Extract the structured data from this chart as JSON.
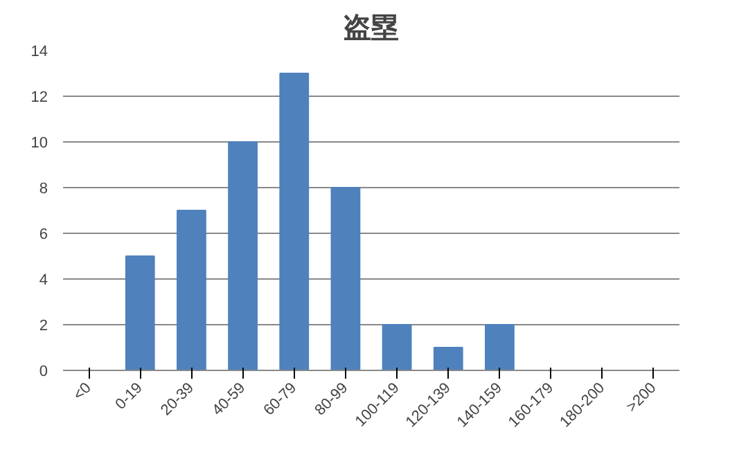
{
  "chart_data": {
    "type": "bar",
    "title": "盗塁",
    "categories": [
      "<0",
      "0-19",
      "20-39",
      "40-59",
      "60-79",
      "80-99",
      "100-119",
      "120-139",
      "140-159",
      "160-179",
      "180-200",
      ">200"
    ],
    "values": [
      0,
      5,
      7,
      10,
      13,
      8,
      2,
      1,
      2,
      0,
      0,
      0
    ],
    "color": "#4f81bd",
    "ylim": [
      0,
      14
    ],
    "yticks": [
      0,
      2,
      4,
      6,
      8,
      10,
      12,
      14
    ],
    "grid": "y"
  }
}
